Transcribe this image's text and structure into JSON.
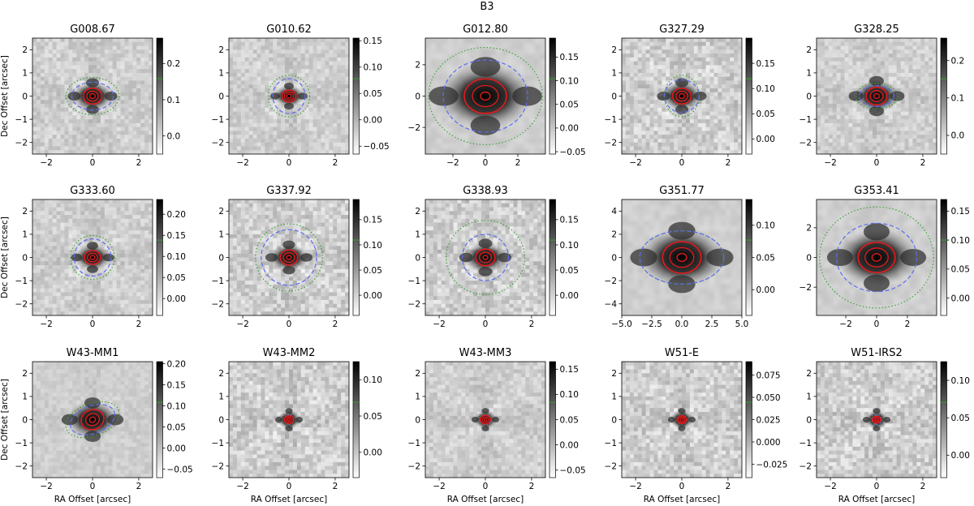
{
  "chart_data": {
    "type": "heatmap",
    "title": "B3",
    "xlabel": "RA Offset [arcsec]",
    "ylabel": "Dec Offset [arcsec]",
    "colormap": "grayscale (white to black)",
    "contour_color": "#e31a1c",
    "ellipse_inner_color": "#5b6cf0",
    "ellipse_outer_color": "#33a02c",
    "panels": [
      {
        "name": "G008.67",
        "xlim": [
          -2.6,
          2.6
        ],
        "ylim": [
          -2.5,
          2.5
        ],
        "xticks": [
          -2,
          0,
          2
        ],
        "yticks": [
          -2,
          -1,
          0,
          1,
          2
        ],
        "cbar_min": -0.05,
        "cbar_max": 0.27,
        "cbar_ticks": [
          0.0,
          0.1,
          0.2
        ],
        "cbar_labels": [
          "0.0",
          "0.1",
          "0.2"
        ],
        "blue_ellipse": [
          0.9,
          0.6,
          0
        ],
        "green_ellipse": [
          1.15,
          0.8,
          0
        ],
        "contour_radii": [
          0.4,
          0.25,
          0.12
        ],
        "noise": "medium"
      },
      {
        "name": "G010.62",
        "xlim": [
          -2.6,
          2.6
        ],
        "ylim": [
          -2.5,
          2.5
        ],
        "xticks": [
          -2,
          0,
          2
        ],
        "yticks": [
          -2,
          -1,
          0,
          1,
          2
        ],
        "cbar_min": -0.065,
        "cbar_max": 0.155,
        "cbar_ticks": [
          -0.05,
          0.0,
          0.05,
          0.1,
          0.15
        ],
        "cbar_labels": [
          "−0.05",
          "0.00",
          "0.05",
          "0.10",
          "0.15"
        ],
        "blue_ellipse": [
          0.7,
          0.75,
          0
        ],
        "green_ellipse": [
          0.9,
          0.9,
          0
        ],
        "contour_radii": [
          0.3,
          0.2,
          0.1
        ],
        "noise": "medium"
      },
      {
        "name": "G012.80",
        "xlim": [
          -3.7,
          3.7
        ],
        "ylim": [
          -3.7,
          3.7
        ],
        "xticks": [
          -2,
          0,
          2
        ],
        "yticks": [
          -2,
          0,
          2
        ],
        "cbar_min": -0.055,
        "cbar_max": 0.19,
        "cbar_ticks": [
          -0.05,
          0.0,
          0.05,
          0.1,
          0.15
        ],
        "cbar_labels": [
          "−0.05",
          "0.00",
          "0.05",
          "0.10",
          "0.15"
        ],
        "blue_ellipse": [
          2.6,
          2.3,
          0
        ],
        "green_ellipse": [
          3.5,
          3.1,
          0
        ],
        "contour_radii": [
          1.3,
          0.8,
          0.3
        ],
        "noise": "low",
        "blurred": true
      },
      {
        "name": "G327.29",
        "xlim": [
          -2.6,
          2.6
        ],
        "ylim": [
          -2.5,
          2.5
        ],
        "xticks": [
          -2,
          0,
          2
        ],
        "yticks": [
          -2,
          -1,
          0,
          1,
          2
        ],
        "cbar_min": -0.03,
        "cbar_max": 0.2,
        "cbar_ticks": [
          0.0,
          0.05,
          0.1,
          0.15
        ],
        "cbar_labels": [
          "0.00",
          "0.05",
          "0.10",
          "0.15"
        ],
        "blue_ellipse": [
          0.75,
          0.7,
          0
        ],
        "green_ellipse": [
          0.75,
          0.9,
          0
        ],
        "contour_radii": [
          0.4,
          0.25,
          0.12
        ],
        "noise": "high"
      },
      {
        "name": "G328.25",
        "xlim": [
          -2.6,
          2.6
        ],
        "ylim": [
          -2.5,
          2.5
        ],
        "xticks": [
          -2,
          0,
          2
        ],
        "yticks": [
          -2,
          -1,
          0,
          1,
          2
        ],
        "cbar_min": -0.05,
        "cbar_max": 0.26,
        "cbar_ticks": [
          0.0,
          0.1,
          0.2
        ],
        "cbar_labels": [
          "0.0",
          "0.1",
          "0.2"
        ],
        "blue_ellipse": [
          0.75,
          0.45,
          0
        ],
        "green_ellipse": [
          0.9,
          0.55,
          0
        ],
        "contour_radii": [
          0.45,
          0.28,
          0.12
        ],
        "noise": "medium"
      },
      {
        "name": "G333.60",
        "xlim": [
          -2.6,
          2.6
        ],
        "ylim": [
          -2.5,
          2.5
        ],
        "xticks": [
          -2,
          0,
          2
        ],
        "yticks": [
          -2,
          -1,
          0,
          1,
          2
        ],
        "cbar_min": -0.04,
        "cbar_max": 0.235,
        "cbar_ticks": [
          0.0,
          0.05,
          0.1,
          0.15,
          0.2
        ],
        "cbar_labels": [
          "0.00",
          "0.05",
          "0.10",
          "0.15",
          "0.20"
        ],
        "blue_ellipse": [
          0.8,
          0.8,
          0
        ],
        "green_ellipse": [
          0.95,
          0.95,
          0
        ],
        "contour_radii": [
          0.35,
          0.22,
          0.1
        ],
        "noise": "medium"
      },
      {
        "name": "G337.92",
        "xlim": [
          -2.6,
          2.6
        ],
        "ylim": [
          -2.5,
          2.5
        ],
        "xticks": [
          -2,
          0,
          2
        ],
        "yticks": [
          -2,
          -1,
          0,
          1,
          2
        ],
        "cbar_min": -0.04,
        "cbar_max": 0.19,
        "cbar_ticks": [
          0.0,
          0.05,
          0.1,
          0.15
        ],
        "cbar_labels": [
          "0.00",
          "0.05",
          "0.10",
          "0.15"
        ],
        "blue_ellipse": [
          1.2,
          1.2,
          0
        ],
        "green_ellipse": [
          1.45,
          1.45,
          0
        ],
        "contour_radii": [
          0.38,
          0.24,
          0.1
        ],
        "noise": "high"
      },
      {
        "name": "G338.93",
        "xlim": [
          -2.6,
          2.6
        ],
        "ylim": [
          -2.5,
          2.5
        ],
        "xticks": [
          -2,
          0,
          2
        ],
        "yticks": [
          -2,
          -1,
          0,
          1,
          2
        ],
        "cbar_min": -0.04,
        "cbar_max": 0.19,
        "cbar_ticks": [
          0.0,
          0.05,
          0.1,
          0.15
        ],
        "cbar_labels": [
          "0.00",
          "0.05",
          "0.10",
          "0.15"
        ],
        "blue_ellipse": [
          1.0,
          1.0,
          0
        ],
        "green_ellipse": [
          1.7,
          1.6,
          0
        ],
        "contour_radii": [
          0.42,
          0.26,
          0.1
        ],
        "noise": "high"
      },
      {
        "name": "G351.77",
        "xlim": [
          -5,
          5
        ],
        "ylim": [
          -5,
          5
        ],
        "xticks": [
          -5,
          -2.5,
          0,
          2.5,
          5
        ],
        "xtick_labels": [
          "−5.0",
          "−2.5",
          "0.0",
          "2.5",
          "5.0"
        ],
        "yticks": [
          -4,
          -2,
          0,
          2,
          4
        ],
        "cbar_min": -0.04,
        "cbar_max": 0.14,
        "cbar_ticks": [
          0.0,
          0.05,
          0.1
        ],
        "cbar_labels": [
          "0.00",
          "0.05",
          "0.10"
        ],
        "blue_ellipse": [
          3.5,
          2.3,
          0
        ],
        "green_ellipse": [
          3.5,
          2.3,
          0
        ],
        "contour_radii": [
          1.6,
          1.0,
          0.4
        ],
        "noise": "low",
        "blurred": true
      },
      {
        "name": "G353.41",
        "xlim": [
          -3.9,
          3.9
        ],
        "ylim": [
          -3.9,
          3.9
        ],
        "xticks": [
          -2,
          0,
          2
        ],
        "yticks": [
          -2,
          0,
          2
        ],
        "cbar_min": -0.03,
        "cbar_max": 0.17,
        "cbar_ticks": [
          0.0,
          0.05,
          0.1,
          0.15
        ],
        "cbar_labels": [
          "0.00",
          "0.05",
          "0.10",
          "0.15"
        ],
        "blue_ellipse": [
          2.6,
          2.3,
          0
        ],
        "green_ellipse": [
          3.7,
          3.4,
          0
        ],
        "contour_radii": [
          1.2,
          0.75,
          0.3
        ],
        "noise": "low",
        "blurred": true
      },
      {
        "name": "W43-MM1",
        "xlim": [
          -2.6,
          2.6
        ],
        "ylim": [
          -2.5,
          2.5
        ],
        "xticks": [
          -2,
          0,
          2
        ],
        "yticks": [
          -2,
          -1,
          0,
          1,
          2
        ],
        "cbar_min": -0.07,
        "cbar_max": 0.205,
        "cbar_ticks": [
          -0.05,
          0.0,
          0.05,
          0.1,
          0.15,
          0.2
        ],
        "cbar_labels": [
          "−0.05",
          "0.00",
          "0.05",
          "0.10",
          "0.15",
          "0.20"
        ],
        "blue_ellipse": [
          1.0,
          0.6,
          20
        ],
        "green_ellipse": [
          1.2,
          0.7,
          20
        ],
        "contour_radii": [
          0.5,
          0.3,
          0.13
        ],
        "noise": "low"
      },
      {
        "name": "W43-MM2",
        "xlim": [
          -2.6,
          2.6
        ],
        "ylim": [
          -2.5,
          2.5
        ],
        "xticks": [
          -2,
          0,
          2
        ],
        "yticks": [
          -2,
          -1,
          0,
          1,
          2
        ],
        "cbar_min": -0.035,
        "cbar_max": 0.125,
        "cbar_ticks": [
          0.0,
          0.05,
          0.1
        ],
        "cbar_labels": [
          "0.00",
          "0.05",
          "0.10"
        ],
        "blue_ellipse": [
          0.2,
          0.2,
          0
        ],
        "green_ellipse": [
          0.22,
          0.22,
          0
        ],
        "contour_radii": [
          0.2,
          0.12,
          0.05
        ],
        "noise": "high"
      },
      {
        "name": "W43-MM3",
        "xlim": [
          -2.6,
          2.6
        ],
        "ylim": [
          -2.5,
          2.5
        ],
        "xticks": [
          -2,
          0,
          2
        ],
        "yticks": [
          -2,
          -1,
          0,
          1,
          2
        ],
        "cbar_min": -0.065,
        "cbar_max": 0.165,
        "cbar_ticks": [
          -0.05,
          0.0,
          0.05,
          0.1,
          0.15
        ],
        "cbar_labels": [
          "−0.05",
          "0.00",
          "0.05",
          "0.10",
          "0.15"
        ],
        "blue_ellipse": [
          0.25,
          0.2,
          0
        ],
        "green_ellipse": [
          0.27,
          0.22,
          0
        ],
        "contour_radii": [
          0.22,
          0.13,
          0.05
        ],
        "noise": "medium"
      },
      {
        "name": "W51-E",
        "xlim": [
          -2.6,
          2.6
        ],
        "ylim": [
          -2.5,
          2.5
        ],
        "xticks": [
          -2,
          0,
          2
        ],
        "yticks": [
          -2,
          -1,
          0,
          1,
          2
        ],
        "cbar_min": -0.04,
        "cbar_max": 0.09,
        "cbar_ticks": [
          -0.025,
          0.0,
          0.025,
          0.05,
          0.075
        ],
        "cbar_labels": [
          "−0.025",
          "0.000",
          "0.025",
          "0.050",
          "0.075"
        ],
        "blue_ellipse": [
          0.2,
          0.18,
          0
        ],
        "green_ellipse": [
          0.22,
          0.2,
          0
        ],
        "contour_radii": [
          0.2,
          0.13,
          0.06
        ],
        "noise": "high"
      },
      {
        "name": "W51-IRS2",
        "xlim": [
          -2.6,
          2.6
        ],
        "ylim": [
          -2.5,
          2.5
        ],
        "xticks": [
          -2,
          0,
          2
        ],
        "yticks": [
          -2,
          -1,
          0,
          1,
          2
        ],
        "cbar_min": -0.03,
        "cbar_max": 0.125,
        "cbar_ticks": [
          0.0,
          0.05,
          0.1
        ],
        "cbar_labels": [
          "0.00",
          "0.05",
          "0.10"
        ],
        "blue_ellipse": [
          0.2,
          0.2,
          0
        ],
        "green_ellipse": [
          0.22,
          0.22,
          0
        ],
        "contour_radii": [
          0.18,
          0.11,
          0.05
        ],
        "noise": "high"
      }
    ]
  }
}
